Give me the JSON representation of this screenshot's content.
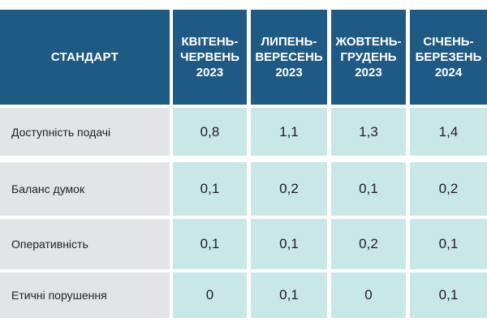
{
  "header": {
    "standard": "СТАНДАРТ",
    "periods": [
      "КВІТЕНЬ-\nЧЕРВЕНЬ\n2023",
      "ЛИПЕНЬ-\nВЕРЕСЕНЬ\n2023",
      "ЖОВТЕНЬ-\nГРУДЕНЬ\n2023",
      "СІЧЕНЬ-\nБЕРЕЗЕНЬ\n2024"
    ]
  },
  "rows": [
    {
      "label": "Доступність подачі",
      "values": [
        "0,8",
        "1,1",
        "1,3",
        "1,4"
      ]
    },
    {
      "label": "Баланс думок",
      "values": [
        "0,1",
        "0,2",
        "0,1",
        "0,2"
      ]
    },
    {
      "label": "Оперативність",
      "values": [
        "0,1",
        "0,1",
        "0,2",
        "0,1"
      ]
    },
    {
      "label": "Етичні порушення",
      "values": [
        "0",
        "0,1",
        "0",
        "0,1"
      ]
    }
  ],
  "colors": {
    "header_bg": "#1f5a84",
    "label_bg": "#e3e4e8",
    "value_bg": "#c9e7e6"
  }
}
